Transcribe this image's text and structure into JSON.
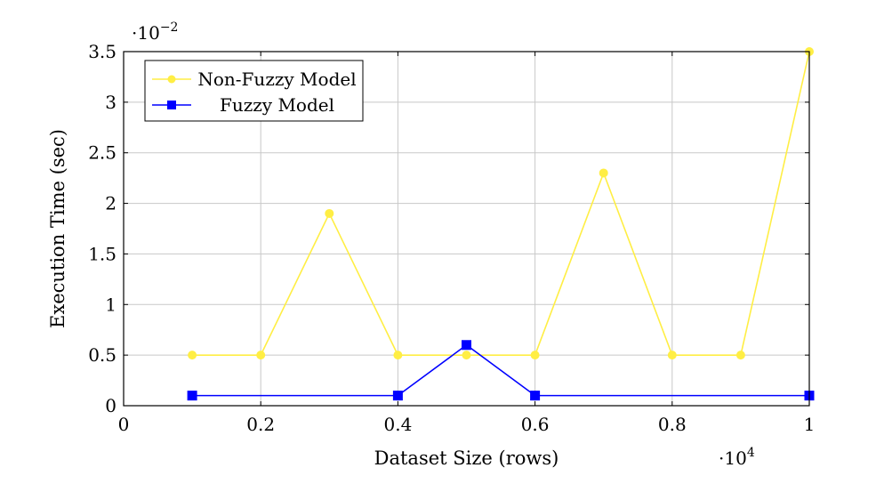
{
  "chart_data": {
    "type": "line",
    "xlabel": "Dataset Size (rows)",
    "ylabel": "Execution Time (sec)",
    "x_scale_base": "·10",
    "x_scale_exp": "4",
    "y_scale_base": "·10",
    "y_scale_exp": "−2",
    "xlim": [
      0,
      1
    ],
    "ylim": [
      0,
      3.5
    ],
    "x_ticks": [
      0,
      0.2,
      0.4,
      0.6,
      0.8,
      1
    ],
    "x_tick_labels": [
      "0",
      "0.2",
      "0.4",
      "0.6",
      "0.8",
      "1"
    ],
    "y_ticks": [
      0,
      0.5,
      1,
      1.5,
      2,
      2.5,
      3,
      3.5
    ],
    "y_tick_labels": [
      "0",
      "0.5",
      "1",
      "1.5",
      "2",
      "2.5",
      "3",
      "3.5"
    ],
    "grid": true,
    "legend_position": "top-left",
    "x": [
      0.1,
      0.2,
      0.3,
      0.4,
      0.5,
      0.6,
      0.7,
      0.8,
      0.9,
      1.0
    ],
    "series": [
      {
        "name": "Non-Fuzzy Model",
        "color": "#ffee44",
        "marker": "circle",
        "x": [
          0.1,
          0.2,
          0.3,
          0.4,
          0.5,
          0.6,
          0.7,
          0.8,
          0.9,
          1.0
        ],
        "values": [
          0.5,
          0.5,
          1.9,
          0.5,
          0.5,
          0.5,
          2.3,
          0.5,
          0.5,
          3.5
        ]
      },
      {
        "name": "Fuzzy Model",
        "color": "#0000ff",
        "marker": "square",
        "x": [
          0.1,
          0.4,
          0.5,
          0.6,
          1.0
        ],
        "values": [
          0.1,
          0.1,
          0.6,
          0.1,
          0.1
        ]
      }
    ]
  }
}
